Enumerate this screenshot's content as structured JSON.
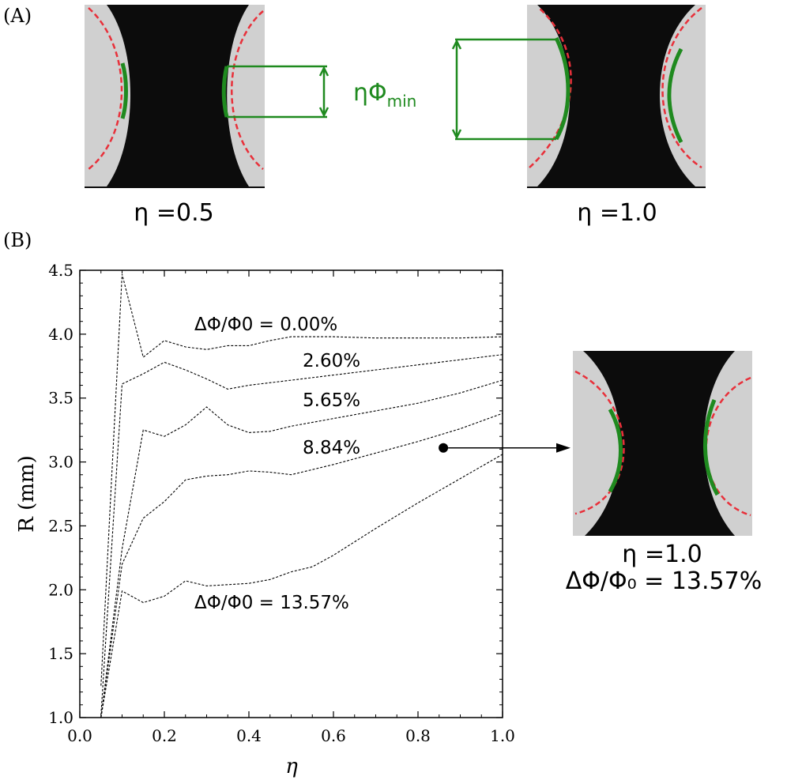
{
  "panel_a": {
    "label": "(A)",
    "left_caption": "η =0.5",
    "right_caption": "η =1.0",
    "annotation_main": "ηΦ",
    "annotation_sub": "min"
  },
  "panel_b": {
    "label": "(B)",
    "inset_caption_line1": "η =1.0",
    "inset_caption_line2": "ΔΦ/Φ₀ = 13.57%"
  },
  "colors": {
    "fit_red": "#e8303a",
    "profile_green": "#1f8a1f",
    "frame_dark": "#0c0c0c",
    "background_gray": "#c8c8c8"
  },
  "chart_data": {
    "type": "line",
    "xlabel": "η",
    "ylabel": "R (mm)",
    "xlim": [
      0.0,
      1.0
    ],
    "ylim": [
      1.0,
      4.5
    ],
    "xticks": [
      "0.0",
      "0.2",
      "0.4",
      "0.6",
      "0.8",
      "1.0"
    ],
    "yticks": [
      "1.0",
      "1.5",
      "2.0",
      "2.5",
      "3.0",
      "3.5",
      "4.0",
      "4.5"
    ],
    "grid": false,
    "series": [
      {
        "name": "ΔΦ/Φ0 = 0.00%",
        "x": [
          0.05,
          0.1,
          0.15,
          0.2,
          0.25,
          0.3,
          0.35,
          0.4,
          0.45,
          0.5,
          0.6,
          0.7,
          0.8,
          0.9,
          1.0
        ],
        "y": [
          1.25,
          4.47,
          3.82,
          3.95,
          3.9,
          3.88,
          3.91,
          3.91,
          3.95,
          3.98,
          3.98,
          3.97,
          3.97,
          3.97,
          3.98
        ]
      },
      {
        "name": "2.60%",
        "x": [
          0.05,
          0.1,
          0.15,
          0.2,
          0.25,
          0.3,
          0.35,
          0.4,
          0.5,
          0.6,
          0.7,
          0.8,
          0.9,
          1.0
        ],
        "y": [
          1.02,
          3.61,
          3.69,
          3.78,
          3.72,
          3.65,
          3.57,
          3.6,
          3.64,
          3.68,
          3.72,
          3.76,
          3.8,
          3.84
        ]
      },
      {
        "name": "5.65%",
        "x": [
          0.05,
          0.1,
          0.15,
          0.2,
          0.25,
          0.3,
          0.35,
          0.4,
          0.45,
          0.5,
          0.6,
          0.7,
          0.8,
          0.9,
          1.0
        ],
        "y": [
          1.0,
          2.32,
          3.25,
          3.2,
          3.29,
          3.43,
          3.29,
          3.23,
          3.24,
          3.28,
          3.34,
          3.4,
          3.46,
          3.54,
          3.64
        ]
      },
      {
        "name": "8.84%",
        "x": [
          0.05,
          0.1,
          0.15,
          0.2,
          0.25,
          0.3,
          0.35,
          0.4,
          0.45,
          0.5,
          0.6,
          0.7,
          0.8,
          0.9,
          1.0
        ],
        "y": [
          1.0,
          2.2,
          2.56,
          2.69,
          2.86,
          2.89,
          2.9,
          2.93,
          2.92,
          2.9,
          2.98,
          3.07,
          3.16,
          3.26,
          3.38
        ]
      },
      {
        "name": "ΔΦ/Φ0 = 13.57%",
        "x": [
          0.05,
          0.1,
          0.15,
          0.2,
          0.25,
          0.3,
          0.35,
          0.4,
          0.45,
          0.5,
          0.55,
          0.6,
          0.7,
          0.8,
          0.9,
          1.0
        ],
        "y": [
          1.0,
          1.99,
          1.9,
          1.95,
          2.07,
          2.03,
          2.04,
          2.05,
          2.08,
          2.14,
          2.18,
          2.27,
          2.48,
          2.68,
          2.87,
          3.06
        ]
      }
    ],
    "annotations": [
      "ΔΦ/Φ0 = 0.00%",
      "2.60%",
      "5.65%",
      "8.84%",
      "ΔΦ/Φ0 = 13.57%"
    ],
    "marker_point": {
      "x": 0.86,
      "y": 3.11
    }
  }
}
